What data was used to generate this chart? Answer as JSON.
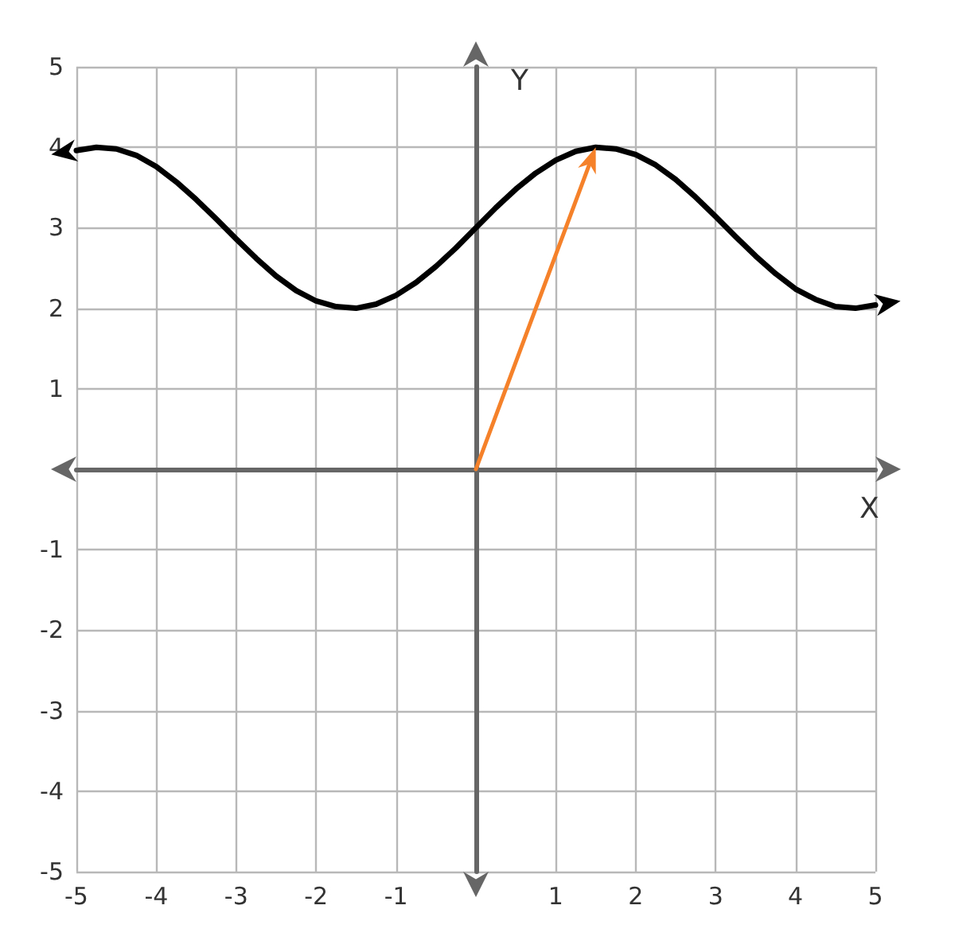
{
  "chart_data": {
    "type": "line",
    "xlabel": "X",
    "ylabel": "Y",
    "xlim": [
      -5,
      5
    ],
    "ylim": [
      -5,
      5
    ],
    "xticks": [
      -5,
      -4,
      -3,
      -2,
      -1,
      {
        "value": 0,
        "label": null
      },
      1,
      2,
      3,
      4,
      5
    ],
    "yticks": [
      -5,
      -4,
      -3,
      -2,
      -1,
      {
        "value": 0,
        "label": null
      },
      1,
      2,
      3,
      4,
      5
    ],
    "grid": true,
    "x": [
      -5,
      -4.75,
      -4.5,
      -4.25,
      -4,
      -3.75,
      -3.5,
      -3.25,
      -3,
      -2.75,
      -2.5,
      -2.25,
      -2,
      -1.75,
      -1.5,
      -1.25,
      -1,
      -0.75,
      -0.5,
      -0.25,
      0,
      0.25,
      0.5,
      0.75,
      1,
      1.25,
      1.5,
      1.75,
      2,
      2.25,
      2.5,
      2.75,
      3,
      3.25,
      3.5,
      3.75,
      4,
      4.25,
      4.5,
      4.75,
      5
    ],
    "series": [
      {
        "color": "#000000",
        "values": [
          3.96,
          4.0,
          3.98,
          3.9,
          3.76,
          3.57,
          3.35,
          3.11,
          2.86,
          2.62,
          2.4,
          2.22,
          2.09,
          2.02,
          2.0,
          2.05,
          2.16,
          2.32,
          2.52,
          2.75,
          3.0,
          3.25,
          3.48,
          3.68,
          3.84,
          3.95,
          4.0,
          3.98,
          3.91,
          3.78,
          3.6,
          3.38,
          3.14,
          2.89,
          2.65,
          2.43,
          2.24,
          2.11,
          2.02,
          2.0,
          2.04
        ]
      }
    ]
  }
}
